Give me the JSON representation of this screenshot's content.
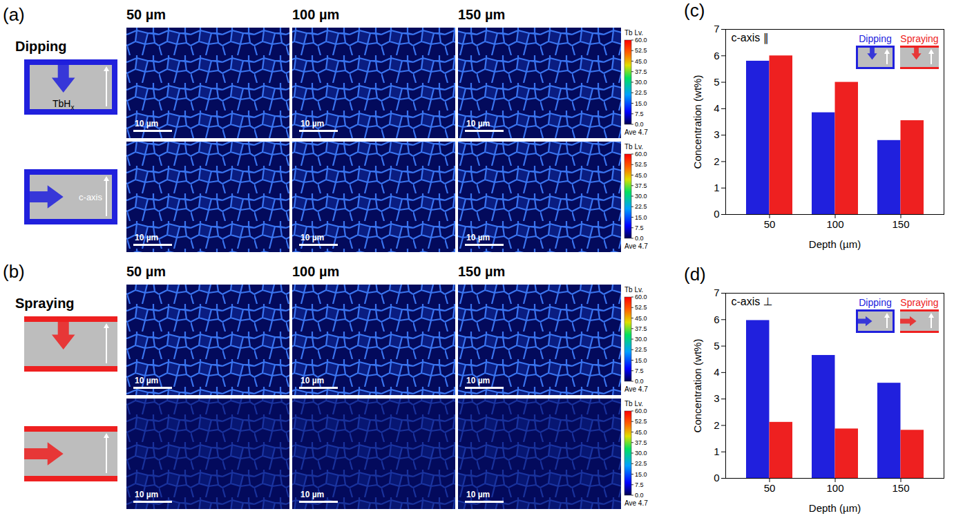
{
  "maps": {
    "column_labels": [
      "50 µm",
      "100 µm",
      "150 µm"
    ],
    "scale_bar": "10 µm",
    "colorbar": {
      "title": "Tb Lv.",
      "range": [
        0,
        60
      ],
      "ticks": [
        {
          "value": 0,
          "label": "0.0"
        },
        7.5,
        {
          "value": 15,
          "label": "15.0"
        },
        22.5,
        {
          "value": 30,
          "label": "30.0"
        },
        37.5,
        {
          "value": 45,
          "label": "45.0"
        },
        52.5,
        {
          "value": 60,
          "label": "60.0"
        }
      ],
      "average_label": "Ave",
      "average": 4.7
    },
    "panels": [
      {
        "panel_label": "(a)",
        "method": "Dipping",
        "color": "#2020dd",
        "source": "TbH",
        "source_subscript": "x",
        "axis_label": "c-axis"
      },
      {
        "panel_label": "(b)",
        "method": "Spraying",
        "color": "#ee2020"
      }
    ]
  },
  "chart_data": [
    {
      "type": "bar",
      "panel_label": "(c)",
      "annotation": "c-axis ∥",
      "categories": [
        50,
        100,
        150
      ],
      "series": [
        {
          "name": "Dipping",
          "color": "#2020dd",
          "values": [
            5.8,
            3.85,
            2.8
          ]
        },
        {
          "name": "Spraying",
          "color": "#ee2020",
          "values": [
            6.0,
            5.0,
            3.55
          ]
        }
      ],
      "xlabel": "Depth (µm)",
      "ylabel": "Concentration (wt%)",
      "ylim": [
        0,
        7
      ],
      "yticks": [
        0,
        1,
        2,
        3,
        4,
        5,
        6,
        7
      ],
      "grid": false,
      "legend": "upper right"
    },
    {
      "type": "bar",
      "panel_label": "(d)",
      "annotation": "c-axis ⊥",
      "categories": [
        50,
        100,
        150
      ],
      "series": [
        {
          "name": "Dipping",
          "color": "#2020dd",
          "values": [
            5.97,
            4.65,
            3.6
          ]
        },
        {
          "name": "Spraying",
          "color": "#ee2020",
          "values": [
            2.12,
            1.87,
            1.82
          ]
        }
      ],
      "xlabel": "Depth (µm)",
      "ylabel": "Concentration (wt%)",
      "ylim": [
        0,
        7
      ],
      "yticks": [
        0,
        1,
        2,
        3,
        4,
        5,
        6,
        7
      ],
      "grid": false,
      "legend": "upper right"
    }
  ]
}
